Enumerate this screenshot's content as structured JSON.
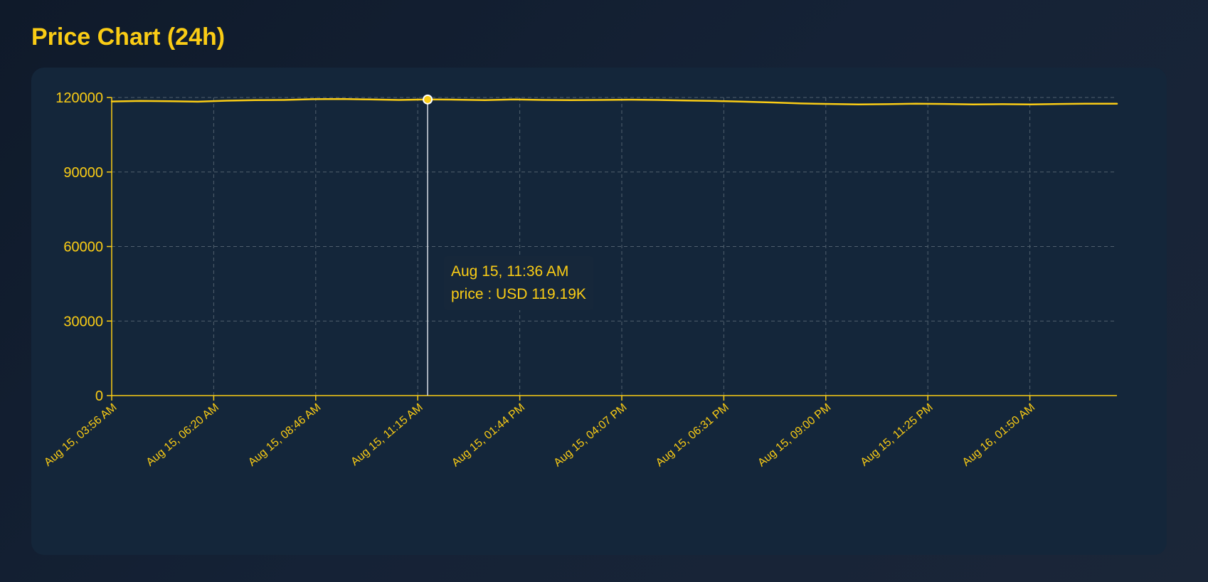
{
  "page": {
    "title": "Price Chart (24h)"
  },
  "colors": {
    "accent": "#facc15",
    "card": "#14263a",
    "grid": "#51606e",
    "cursor": "#d7dde4"
  },
  "tooltip": {
    "time": "Aug 15, 11:36 AM",
    "series_label": "price",
    "separator": " : ",
    "value_text": "USD 119.19K"
  },
  "chart_data": {
    "type": "line",
    "title": "Price Chart (24h)",
    "xlabel": "",
    "ylabel": "",
    "ylim": [
      0,
      120000
    ],
    "grid": true,
    "legend": "none",
    "y_ticks": [
      0,
      30000,
      60000,
      90000,
      120000
    ],
    "y_tick_labels": [
      "0",
      "30000",
      "60000",
      "90000",
      "120000"
    ],
    "x_tick_labels": [
      "Aug 15, 03:56 AM",
      "Aug 15, 06:20 AM",
      "Aug 15, 08:46 AM",
      "Aug 15, 11:15 AM",
      "Aug 15, 01:44 PM",
      "Aug 15, 04:07 PM",
      "Aug 15, 06:31 PM",
      "Aug 15, 09:00 PM",
      "Aug 15, 11:25 PM",
      "Aug 16, 01:50 AM"
    ],
    "series": [
      {
        "values": [
          118400,
          118600,
          118500,
          118300,
          118700,
          118900,
          119000,
          119300,
          119400,
          119200,
          119000,
          119190,
          119100,
          118900,
          119200,
          119000,
          118900,
          119000,
          119100,
          119000,
          118800,
          118600,
          118300,
          118000,
          117600,
          117400,
          117200,
          117300,
          117500,
          117400,
          117200,
          117300,
          117200,
          117400,
          117500,
          117500
        ]
      }
    ],
    "highlight": {
      "index": 11,
      "label": "Aug 15, 11:36 AM",
      "value": 119190
    }
  }
}
